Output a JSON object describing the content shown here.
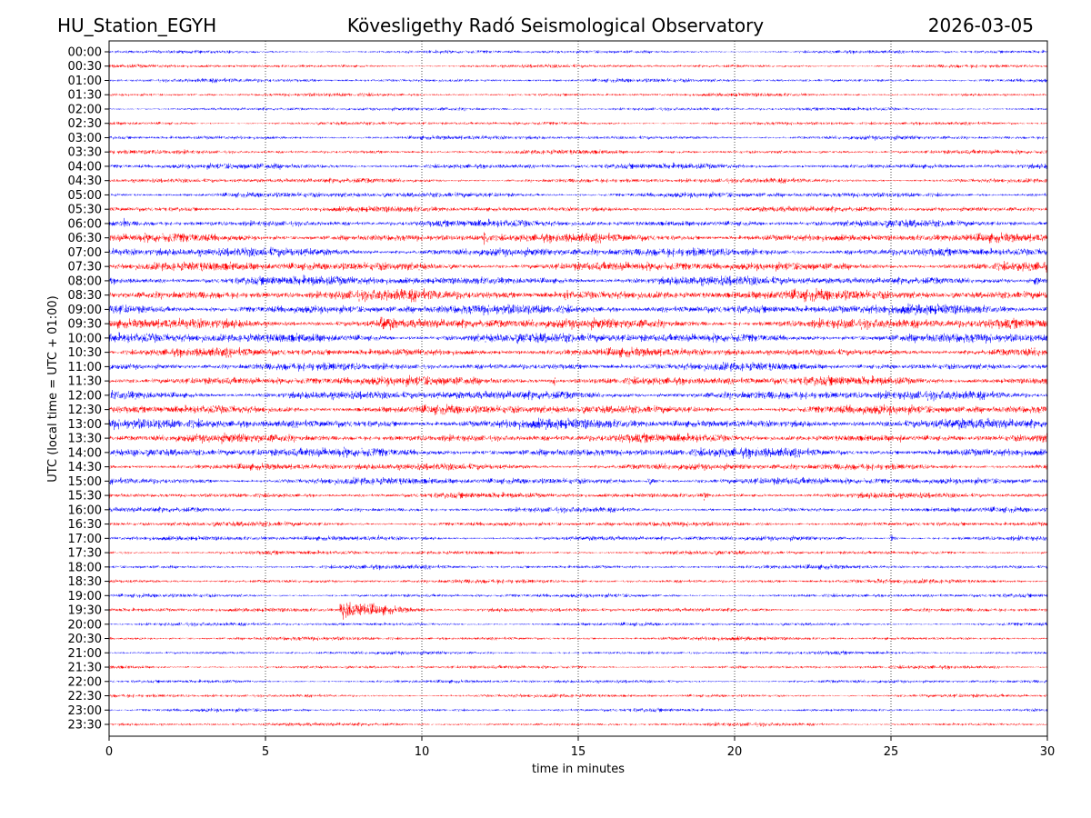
{
  "chart_data": {
    "type": "line",
    "title_left": "HU_Station_EGYH",
    "title": "Kövesligethy Radó Seismological Observatory",
    "title_right": "2026-03-05",
    "xlabel": "time in minutes",
    "ylabel": "UTC (local time = UTC + 01:00)",
    "xlim": [
      0,
      30
    ],
    "xticks": [
      0,
      5,
      10,
      15,
      20,
      25,
      30
    ],
    "grid": "vertical dotted at x ticks",
    "colors": [
      "#0000ff",
      "#ff0000"
    ],
    "rows": [
      "00:00",
      "00:30",
      "01:00",
      "01:30",
      "02:00",
      "02:30",
      "03:00",
      "03:30",
      "04:00",
      "04:30",
      "05:00",
      "05:30",
      "06:00",
      "06:30",
      "07:00",
      "07:30",
      "08:00",
      "08:30",
      "09:00",
      "09:30",
      "10:00",
      "10:30",
      "11:00",
      "11:30",
      "12:00",
      "12:30",
      "13:00",
      "13:30",
      "14:00",
      "14:30",
      "15:00",
      "15:30",
      "16:00",
      "16:30",
      "17:00",
      "17:30",
      "18:00",
      "18:30",
      "19:00",
      "19:30",
      "20:00",
      "20:30",
      "21:00",
      "21:30",
      "22:00",
      "22:30",
      "23:00",
      "23:30"
    ],
    "noise_level": [
      1,
      1,
      1.1,
      1,
      1,
      1,
      1.2,
      1.2,
      1.6,
      1.4,
      1.6,
      1.6,
      2,
      2.4,
      2.6,
      2.6,
      2.6,
      3,
      2.8,
      3,
      2.8,
      2.4,
      2.2,
      2.6,
      2.6,
      2.6,
      2.8,
      2.4,
      2.6,
      2,
      2,
      1.6,
      1.4,
      1.4,
      1.4,
      1.2,
      1.2,
      1.2,
      1.1,
      1.2,
      1,
      1.1,
      1,
      1,
      1,
      1,
      1,
      1
    ],
    "events": [
      {
        "row": "06:30",
        "minute": 12.0,
        "amplitude": 9,
        "duration": 0.25
      },
      {
        "row": "08:30",
        "minute": 14.6,
        "amplitude": 5,
        "duration": 0.6
      },
      {
        "row": "09:30",
        "minute": 8.7,
        "amplitude": 6,
        "duration": 1.6
      },
      {
        "row": "19:30",
        "minute": 7.4,
        "amplitude": 8,
        "duration": 3.0
      },
      {
        "row": "15:30",
        "minute": 19.0,
        "amplitude": 4,
        "duration": 0.3
      },
      {
        "row": "14:00",
        "minute": 0.8,
        "amplitude": 5,
        "duration": 0.2
      },
      {
        "row": "08:00",
        "minute": 29.6,
        "amplitude": 4,
        "duration": 0.5
      },
      {
        "row": "13:30",
        "minute": 25.3,
        "amplitude": 4,
        "duration": 0.1
      },
      {
        "row": "17:00",
        "minute": 25.0,
        "amplitude": 3,
        "duration": 0.3
      },
      {
        "row": "17:00",
        "minute": 8.6,
        "amplitude": 2.5,
        "duration": 0.2
      },
      {
        "row": "11:30",
        "minute": 14.2,
        "amplitude": 4,
        "duration": 0.3
      },
      {
        "row": "06:00",
        "minute": 0.5,
        "amplitude": 4,
        "duration": 0.3
      },
      {
        "row": "07:00",
        "minute": 2.9,
        "amplitude": 3,
        "duration": 0.4
      },
      {
        "row": "18:30",
        "minute": 24.6,
        "amplitude": 3,
        "duration": 0.2
      },
      {
        "row": "15:00",
        "minute": 17.2,
        "amplitude": 2.5,
        "duration": 1.0
      },
      {
        "row": "04:00",
        "minute": 4.9,
        "amplitude": 2.5,
        "duration": 0.1
      },
      {
        "row": "09:00",
        "minute": 25.7,
        "amplitude": 3,
        "duration": 0.3
      }
    ]
  }
}
